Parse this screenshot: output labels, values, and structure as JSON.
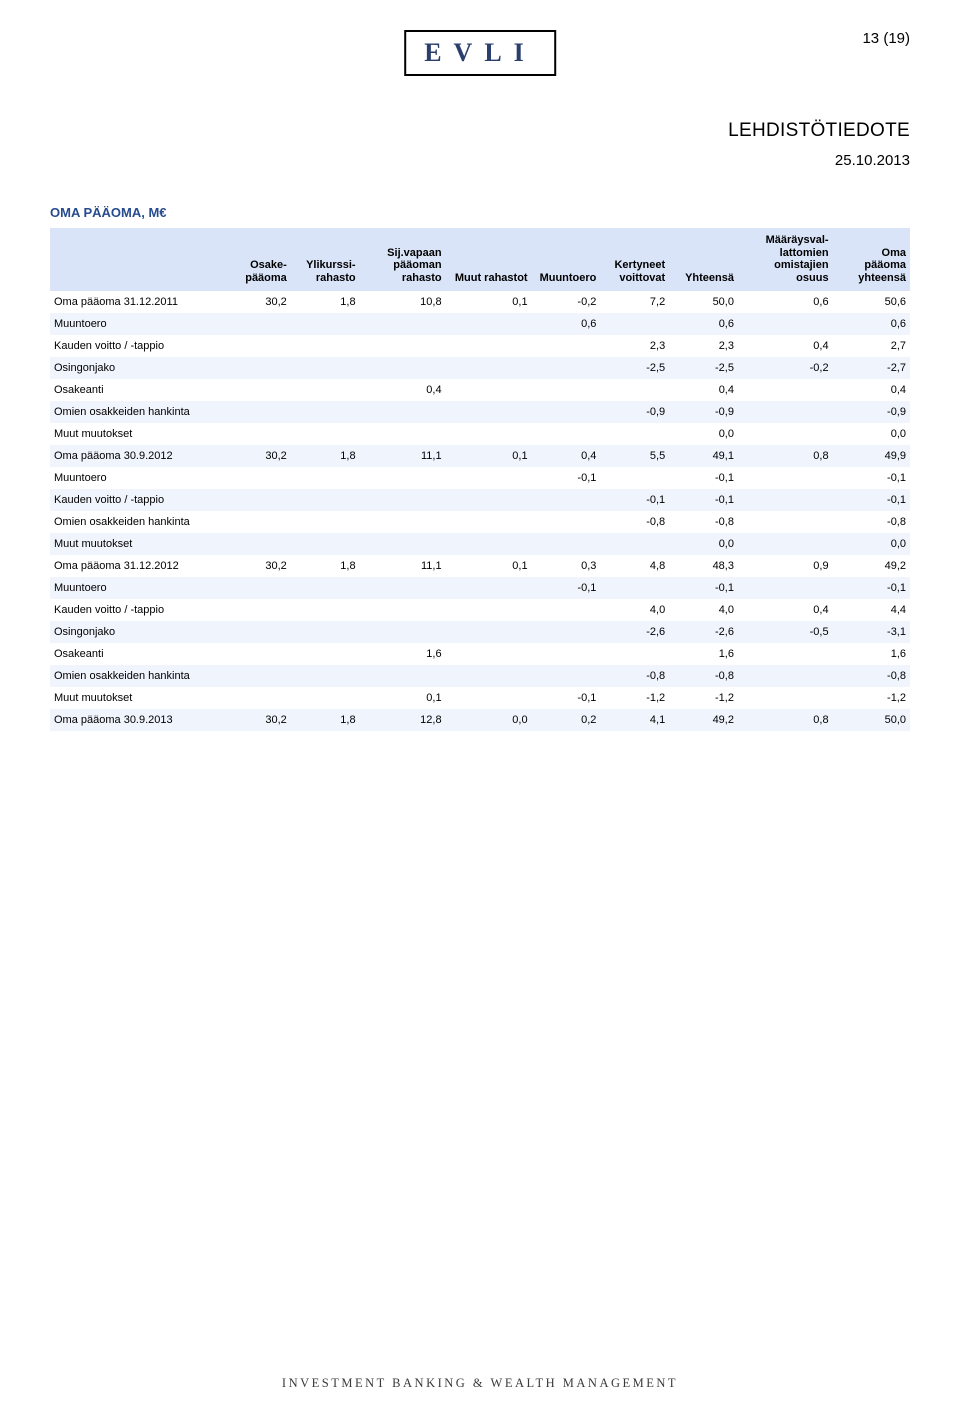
{
  "page_number": "13 (19)",
  "logo_text": "EVLI",
  "press_release": "LEHDISTÖTIEDOTE",
  "doc_date": "25.10.2013",
  "footer_tagline": "INVESTMENT BANKING & WEALTH MANAGEMENT",
  "section_title": "OMA PÄÄOMA, M€",
  "colors": {
    "header_row_bg": "#d9e4f8",
    "band_bg": "#f0f4fc",
    "title_color": "#274b8f",
    "logo_color": "#2a3f6b",
    "text_color": "#000000"
  },
  "typography": {
    "base_font": "Arial",
    "cell_fontsize_pt": 8,
    "title_fontsize_pt": 10,
    "header_fontsize_pt": 11
  },
  "table": {
    "columns": [
      {
        "key": "label",
        "header": "",
        "align": "left",
        "width_pct": 20
      },
      {
        "key": "osake",
        "header": "Osake-\npääoma",
        "align": "right",
        "width_pct": 8
      },
      {
        "key": "ylikurssi",
        "header": "Ylikurssi-\nrahasto",
        "align": "right",
        "width_pct": 8
      },
      {
        "key": "sij",
        "header": "Sij.vapaan\npääoman\nrahasto",
        "align": "right",
        "width_pct": 10
      },
      {
        "key": "muut_rah",
        "header": "Muut rahastot",
        "align": "right",
        "width_pct": 10
      },
      {
        "key": "muuntoero",
        "header": "Muuntoero",
        "align": "right",
        "width_pct": 8
      },
      {
        "key": "kertyneet",
        "header": "Kertyneet\nvoittovat",
        "align": "right",
        "width_pct": 8
      },
      {
        "key": "yhteensa",
        "header": "Yhteensä",
        "align": "right",
        "width_pct": 8
      },
      {
        "key": "maaray",
        "header": "Määräysval-\nlattomien\nomistajien\nosuus",
        "align": "right",
        "width_pct": 11
      },
      {
        "key": "oma_yht",
        "header": "Oma\npääoma\nyhteensä",
        "align": "right",
        "width_pct": 9
      }
    ],
    "rows": [
      {
        "band": false,
        "cells": {
          "label": "Oma pääoma  31.12.2011",
          "osake": "30,2",
          "ylikurssi": "1,8",
          "sij": "10,8",
          "muut_rah": "0,1",
          "muuntoero": "-0,2",
          "kertyneet": "7,2",
          "yhteensa": "50,0",
          "maaray": "0,6",
          "oma_yht": "50,6"
        }
      },
      {
        "band": true,
        "cells": {
          "label": "Muuntoero",
          "muuntoero": "0,6",
          "yhteensa": "0,6",
          "oma_yht": "0,6"
        }
      },
      {
        "band": false,
        "cells": {
          "label": "Kauden voitto / -tappio",
          "kertyneet": "2,3",
          "yhteensa": "2,3",
          "maaray": "0,4",
          "oma_yht": "2,7"
        }
      },
      {
        "band": true,
        "cells": {
          "label": "Osingonjako",
          "kertyneet": "-2,5",
          "yhteensa": "-2,5",
          "maaray": "-0,2",
          "oma_yht": "-2,7"
        }
      },
      {
        "band": false,
        "cells": {
          "label": "Osakeanti",
          "sij": "0,4",
          "yhteensa": "0,4",
          "oma_yht": "0,4"
        }
      },
      {
        "band": true,
        "cells": {
          "label": "Omien osakkeiden hankinta",
          "kertyneet": "-0,9",
          "yhteensa": "-0,9",
          "oma_yht": "-0,9"
        }
      },
      {
        "band": false,
        "cells": {
          "label": "Muut muutokset",
          "yhteensa": "0,0",
          "oma_yht": "0,0"
        }
      },
      {
        "band": true,
        "cells": {
          "label": "Oma pääoma  30.9.2012",
          "osake": "30,2",
          "ylikurssi": "1,8",
          "sij": "11,1",
          "muut_rah": "0,1",
          "muuntoero": "0,4",
          "kertyneet": "5,5",
          "yhteensa": "49,1",
          "maaray": "0,8",
          "oma_yht": "49,9"
        }
      },
      {
        "band": false,
        "cells": {
          "label": "Muuntoero",
          "muuntoero": "-0,1",
          "yhteensa": "-0,1",
          "oma_yht": "-0,1"
        }
      },
      {
        "band": true,
        "cells": {
          "label": "Kauden voitto / -tappio",
          "kertyneet": "-0,1",
          "yhteensa": "-0,1",
          "oma_yht": "-0,1"
        }
      },
      {
        "band": false,
        "cells": {
          "label": "Omien osakkeiden hankinta",
          "kertyneet": "-0,8",
          "yhteensa": "-0,8",
          "oma_yht": "-0,8"
        }
      },
      {
        "band": true,
        "cells": {
          "label": "Muut muutokset",
          "yhteensa": "0,0",
          "oma_yht": "0,0"
        }
      },
      {
        "band": false,
        "cells": {
          "label": "Oma pääoma  31.12.2012",
          "osake": "30,2",
          "ylikurssi": "1,8",
          "sij": "11,1",
          "muut_rah": "0,1",
          "muuntoero": "0,3",
          "kertyneet": "4,8",
          "yhteensa": "48,3",
          "maaray": "0,9",
          "oma_yht": "49,2"
        }
      },
      {
        "band": true,
        "cells": {
          "label": "Muuntoero",
          "muuntoero": "-0,1",
          "yhteensa": "-0,1",
          "oma_yht": "-0,1"
        }
      },
      {
        "band": false,
        "cells": {
          "label": "Kauden voitto / -tappio",
          "kertyneet": "4,0",
          "yhteensa": "4,0",
          "maaray": "0,4",
          "oma_yht": "4,4"
        }
      },
      {
        "band": true,
        "cells": {
          "label": "Osingonjako",
          "kertyneet": "-2,6",
          "yhteensa": "-2,6",
          "maaray": "-0,5",
          "oma_yht": "-3,1"
        }
      },
      {
        "band": false,
        "cells": {
          "label": "Osakeanti",
          "sij": "1,6",
          "yhteensa": "1,6",
          "oma_yht": "1,6"
        }
      },
      {
        "band": true,
        "cells": {
          "label": "Omien osakkeiden hankinta",
          "kertyneet": "-0,8",
          "yhteensa": "-0,8",
          "oma_yht": "-0,8"
        }
      },
      {
        "band": false,
        "cells": {
          "label": "Muut muutokset",
          "sij": "0,1",
          "muuntoero": "-0,1",
          "kertyneet": "-1,2",
          "yhteensa": "-1,2",
          "oma_yht": "-1,2"
        }
      },
      {
        "band": true,
        "cells": {
          "label": "Oma pääoma  30.9.2013",
          "osake": "30,2",
          "ylikurssi": "1,8",
          "sij": "12,8",
          "muut_rah": "0,0",
          "muuntoero": "0,2",
          "kertyneet": "4,1",
          "yhteensa": "49,2",
          "maaray": "0,8",
          "oma_yht": "50,0"
        }
      }
    ]
  }
}
